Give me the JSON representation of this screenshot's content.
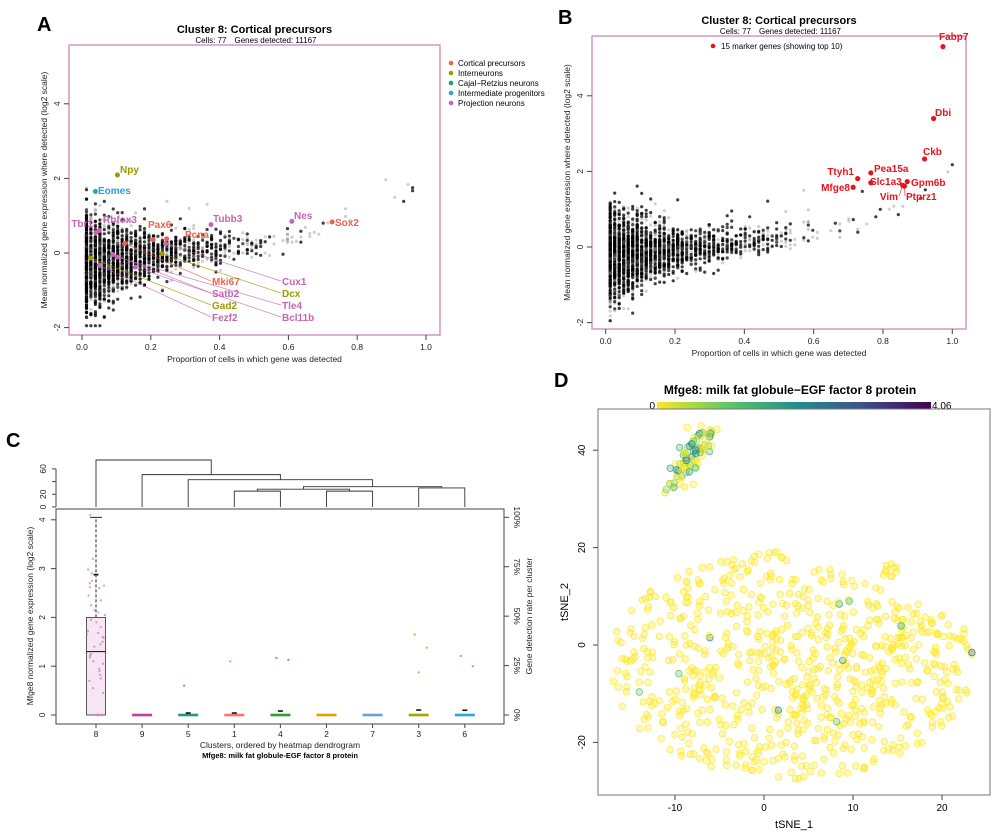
{
  "panel_labels": {
    "a": "A",
    "b": "B",
    "c": "C",
    "d": "D"
  },
  "chart_data": [
    {
      "type": "scatter",
      "title": "Cluster 8: Cortical precursors",
      "subtitle_cells": "Cells: 77",
      "subtitle_genes": "Genes detected: 11167",
      "xlabel": "Proportion of cells in which gene was detected",
      "ylabel": "Mean normalized gene expression where detected (log2 scale)",
      "xlim": [
        0,
        1
      ],
      "ylim": [
        -2,
        5.4
      ],
      "xticks": [
        "0.0",
        "0.2",
        "0.4",
        "0.6",
        "0.8",
        "1.0"
      ],
      "yticks": [
        "-2",
        "0",
        "2",
        "4"
      ],
      "frame_color": "#c77cb8",
      "legend": {
        "position": "right",
        "entries": [
          {
            "name": "Cortical precursors",
            "color": "#f0604d"
          },
          {
            "name": "Interneurons",
            "color": "#9a9a00"
          },
          {
            "name": "Cajal−Retzius neurons",
            "color": "#1a9e77"
          },
          {
            "name": "Intermediate progenitors",
            "color": "#2aa0dc"
          },
          {
            "name": "Projection neurons",
            "color": "#c566b0"
          }
        ]
      },
      "highlighted": [
        {
          "gene": "Npy",
          "x": 0.103,
          "y": 2.09,
          "group": 1
        },
        {
          "gene": "Eomes",
          "x": 0.039,
          "y": 1.65,
          "group": 3
        },
        {
          "gene": "Tubb3",
          "x": 0.375,
          "y": 0.76,
          "group": 4
        },
        {
          "gene": "Nes",
          "x": 0.61,
          "y": 0.85,
          "group": 4
        },
        {
          "gene": "Sox2",
          "x": 0.727,
          "y": 0.83,
          "group": 0
        },
        {
          "gene": "Pcna",
          "x": 0.246,
          "y": 0.38,
          "group": 0
        },
        {
          "gene": "Pax6",
          "x": 0.207,
          "y": 0.36,
          "group": 0
        },
        {
          "gene": "Mki67",
          "x": 0.124,
          "y": 0.25,
          "group": 0
        },
        {
          "gene": "Cux1",
          "x": 0.243,
          "y": 0.25,
          "group": 4
        },
        {
          "gene": "Dcx",
          "x": 0.233,
          "y": -0.02,
          "group": 1
        },
        {
          "gene": "Tle4",
          "x": 0.102,
          "y": -0.11,
          "group": 4
        },
        {
          "gene": "Bcl11b",
          "x": 0.155,
          "y": -0.38,
          "group": 4
        },
        {
          "gene": "Tbr1",
          "x": 0.041,
          "y": 0.55,
          "group": 4
        },
        {
          "gene": "Rbfox3",
          "x": 0.05,
          "y": 0.6,
          "group": 4
        },
        {
          "gene": "Satb2",
          "x": 0.09,
          "y": -0.04,
          "group": 4
        },
        {
          "gene": "Gad2",
          "x": 0.025,
          "y": -0.13,
          "group": 1
        },
        {
          "gene": "Fezf2",
          "x": 0.05,
          "y": -0.33,
          "group": 4
        }
      ]
    },
    {
      "type": "scatter",
      "title": "Cluster 8: Cortical precursors",
      "subtitle_cells": "Cells: 77",
      "subtitle_genes": "Genes detected: 11167",
      "xlabel": "Proportion of cells in which gene was detected",
      "ylabel": "Mean normalized gene expression where detected (log2 scale)",
      "xlim": [
        0,
        1
      ],
      "ylim": [
        -2,
        5.4
      ],
      "xticks": [
        "0.0",
        "0.2",
        "0.4",
        "0.6",
        "0.8",
        "1.0"
      ],
      "yticks": [
        "-2",
        "0",
        "2",
        "4"
      ],
      "frame_color": "#c77cb8",
      "marker_color": "#e8141c",
      "legend": {
        "position": "top",
        "entries": [
          {
            "name": "15 marker genes (showing top 10)",
            "color": "#e8141c"
          }
        ]
      },
      "highlighted": [
        {
          "gene": "Fabp7",
          "x": 0.973,
          "y": 5.3
        },
        {
          "gene": "Dbi",
          "x": 0.946,
          "y": 3.4
        },
        {
          "gene": "Ckb",
          "x": 0.92,
          "y": 2.33
        },
        {
          "gene": "Ttyh1",
          "x": 0.727,
          "y": 1.81
        },
        {
          "gene": "Pea15a",
          "x": 0.765,
          "y": 1.96
        },
        {
          "gene": "Slc1a3",
          "x": 0.765,
          "y": 1.7
        },
        {
          "gene": "Mfge8",
          "x": 0.714,
          "y": 1.58
        },
        {
          "gene": "Gpm6b",
          "x": 0.87,
          "y": 1.73
        },
        {
          "gene": "Vim",
          "x": 0.857,
          "y": 1.63
        },
        {
          "gene": "Ptprz1",
          "x": 0.862,
          "y": 1.61
        }
      ]
    },
    {
      "type": "box",
      "xlabel": "Clusters, ordered by heatmap dendrogram",
      "subtitle": "Mfge8: milk fat globule-EGF factor 8 protein",
      "ylabel": "Mfge8 normalized gene expression (log2 scale)",
      "ylabel_right": "Gene detection rate per cluster",
      "ylim": [
        0,
        4.2
      ],
      "yticks": [
        "0",
        "1",
        "2",
        "3",
        "4"
      ],
      "yticks_right": [
        "0%",
        "25%",
        "50%",
        "75%",
        "100%"
      ],
      "dendrogram_ticks": [
        "0",
        "20",
        "60"
      ],
      "dendrogram_merges": [
        {
          "a": "1",
          "b": "4",
          "height": 25
        },
        {
          "a": "2",
          "b": "7",
          "height": 25
        },
        {
          "a": "3",
          "b": "6",
          "height": 30
        },
        {
          "a": "1,4",
          "b": "2,7",
          "height": 28
        },
        {
          "a": "1,4,2,7",
          "b": "3,6",
          "height": 32
        },
        {
          "a": "5",
          "b": "1,4,2,7,3,6",
          "height": 43
        },
        {
          "a": "9",
          "b": "5,1,4,2,7,3,6",
          "height": 51
        },
        {
          "a": "8",
          "b": "9,5,1,4,2,7,3,6",
          "height": 74
        }
      ],
      "clusters": [
        {
          "label": "8",
          "color": "#d07cc0",
          "q1": 0,
          "median": 1.3,
          "q3": 2.0,
          "whisker_hi": 4.05,
          "detection_rate": 71,
          "points": [
            4.1,
            3.2,
            2.98,
            2.9,
            2.75,
            2.7,
            2.65,
            2.62,
            2.6,
            2.45,
            2.35,
            2.25,
            2.15,
            2.1,
            2.05,
            1.95,
            1.9,
            1.8,
            1.72,
            1.68,
            1.65,
            1.6,
            1.58,
            1.5,
            1.45,
            1.4,
            1.25,
            1.22,
            1.18,
            1.1,
            1.05,
            0.95,
            0.9,
            0.82,
            0.75,
            0.7,
            0.55,
            0.45,
            0,
            0,
            0,
            0,
            0,
            0
          ]
        },
        {
          "label": "9",
          "color": "#c03f9a",
          "q1": 0,
          "median": 0,
          "q3": 0,
          "whisker_hi": 0,
          "detection_rate": 0,
          "points": []
        },
        {
          "label": "5",
          "color": "#1a9e77",
          "q1": 0,
          "median": 0,
          "q3": 0,
          "whisker_hi": 0,
          "detection_rate": 1,
          "points": [
            0.6
          ]
        },
        {
          "label": "1",
          "color": "#f8766d",
          "q1": 0,
          "median": 0,
          "q3": 0,
          "whisker_hi": 0,
          "detection_rate": 1,
          "points": [
            1.1
          ]
        },
        {
          "label": "4",
          "color": "#2ca02c",
          "q1": 0,
          "median": 0,
          "q3": 0,
          "whisker_hi": 0,
          "detection_rate": 2,
          "points": [
            1.17,
            1.13
          ]
        },
        {
          "label": "2",
          "color": "#e69f00",
          "q1": 0,
          "median": 0,
          "q3": 0,
          "whisker_hi": 0,
          "detection_rate": 0,
          "points": []
        },
        {
          "label": "7",
          "color": "#6f9fd8",
          "q1": 0,
          "median": 0,
          "q3": 0,
          "whisker_hi": 0,
          "detection_rate": 0,
          "points": []
        },
        {
          "label": "3",
          "color": "#a3a500",
          "q1": 0,
          "median": 0,
          "q3": 0,
          "whisker_hi": 0,
          "detection_rate": 2.5,
          "points": [
            1.65,
            1.38,
            0.87
          ]
        },
        {
          "label": "6",
          "color": "#2aa7d8",
          "q1": 0,
          "median": 0,
          "q3": 0,
          "whisker_hi": 0,
          "detection_rate": 2.4,
          "points": [
            1.21,
            1.0
          ]
        }
      ]
    },
    {
      "type": "scatter",
      "title": "Mfge8: milk fat globule−EGF factor 8 protein",
      "xlabel": "tSNE_1",
      "ylabel": "tSNE_2",
      "xlim": [
        -18.5,
        25.5
      ],
      "ylim": [
        -31,
        48
      ],
      "xticks": [
        "-10",
        "0",
        "10",
        "20"
      ],
      "yticks": [
        "-20",
        "0",
        "20",
        "40"
      ],
      "colorbar": {
        "min_label": "0",
        "max_label": "4.06",
        "min": 0,
        "max": 4.06,
        "colormap": "viridis (reversed)",
        "colors": [
          "#fde725",
          "#5ec962",
          "#21918c",
          "#3b528b",
          "#440154"
        ]
      }
    }
  ]
}
